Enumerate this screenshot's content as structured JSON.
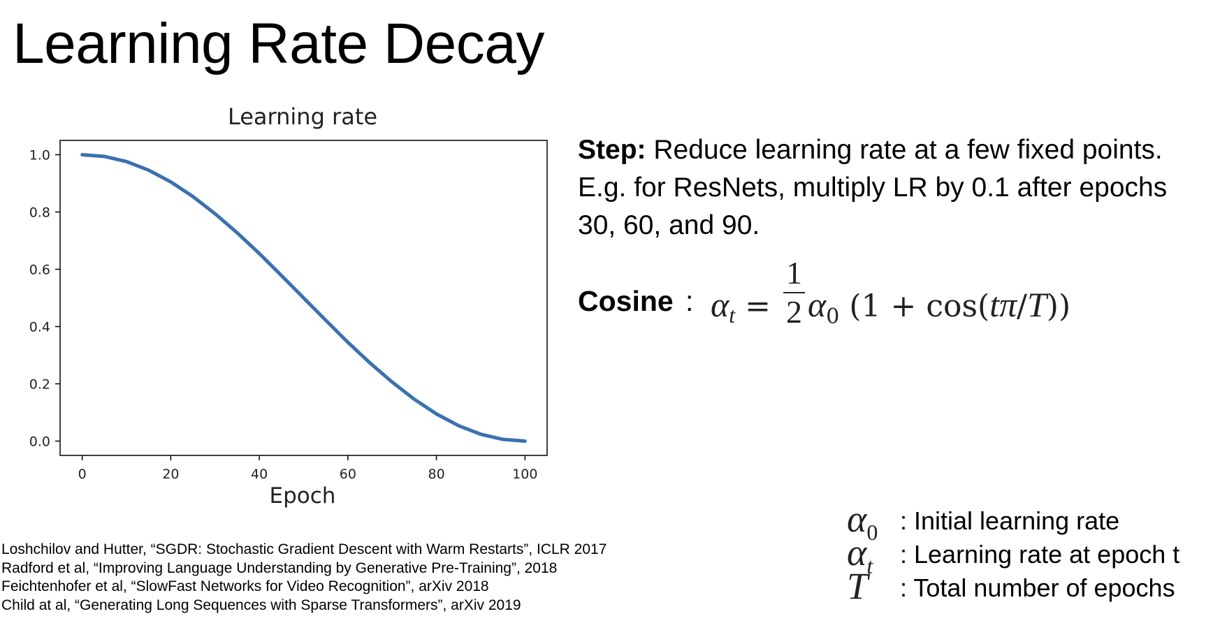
{
  "slide": {
    "title": "Learning Rate Decay"
  },
  "chart_data": {
    "type": "line",
    "title": "Learning rate",
    "xlabel": "Epoch",
    "ylabel": "",
    "xlim": [
      -5,
      105
    ],
    "ylim": [
      -0.05,
      1.05
    ],
    "xticks": [
      0,
      20,
      40,
      60,
      80,
      100
    ],
    "yticks": [
      0.0,
      0.2,
      0.4,
      0.6,
      0.8,
      1.0
    ],
    "xtick_labels": [
      "0",
      "20",
      "40",
      "60",
      "80",
      "100"
    ],
    "ytick_labels": [
      "0.0",
      "0.2",
      "0.4",
      "0.6",
      "0.8",
      "1.0"
    ],
    "grid": false,
    "series": [
      {
        "color": "#3b71ae",
        "x": [
          0,
          5,
          10,
          15,
          20,
          25,
          30,
          35,
          40,
          45,
          50,
          55,
          60,
          65,
          70,
          75,
          80,
          85,
          90,
          95,
          100
        ],
        "y": [
          1.0,
          0.994,
          0.976,
          0.946,
          0.905,
          0.854,
          0.794,
          0.727,
          0.655,
          0.578,
          0.5,
          0.422,
          0.345,
          0.273,
          0.206,
          0.146,
          0.095,
          0.054,
          0.024,
          0.006,
          0.0
        ]
      }
    ]
  },
  "step": {
    "label": "Step:",
    "text": " Reduce learning rate at a few fixed points. E.g. for ResNets, multiply LR by 0.1 after epochs 30, 60, and 90."
  },
  "cosine": {
    "label": "Cosine",
    "colon": ":",
    "lhs": "α",
    "lhs_sub": "t",
    "eq": " = ",
    "frac_num": "1",
    "frac_den": "2",
    "alpha": "α",
    "alpha_sub": "0",
    "rhs": " (1 + cos(",
    "t": "tπ",
    "slash": "/",
    "T": "T",
    "close": "))"
  },
  "references": [
    "Loshchilov and Hutter, “SGDR: Stochastic Gradient Descent with Warm Restarts”, ICLR 2017",
    "Radford et al, “Improving Language Understanding by Generative Pre-Training”, 2018",
    "Feichtenhofer et al, “SlowFast Networks for Video Recognition”, arXiv 2018",
    "Child at al, “Generating Long Sequences with Sparse Transformers”, arXiv 2019"
  ],
  "legend": [
    {
      "symbol": "α",
      "sub": "0",
      "text": ": Initial learning rate"
    },
    {
      "symbol": "α",
      "sub": "t",
      "text": ": Learning rate at epoch t"
    },
    {
      "symbol": "T",
      "sub": "",
      "text": ": Total number of epochs"
    }
  ]
}
